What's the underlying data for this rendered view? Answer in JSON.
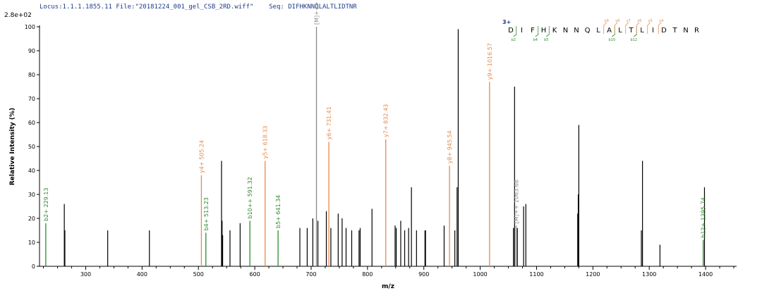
{
  "header": {
    "locus": "Locus:1.1.1.1855.11",
    "file": "File:\"20181224_001_gel_CSB_2RD.wiff\"",
    "seq": "Seq: DIFHKNNQLALTLIDTNR",
    "scale": "2.8e+02"
  },
  "sequence_panel": {
    "charge": "3+",
    "residues": [
      "D",
      "I",
      "F",
      "H",
      "K",
      "N",
      "N",
      "Q",
      "L",
      "A",
      "L",
      "T",
      "L",
      "I",
      "D",
      "T",
      "N",
      "R"
    ],
    "b_ions": [
      {
        "after_index": 0,
        "label": "b2"
      },
      {
        "after_index": 2,
        "label": "b4"
      },
      {
        "after_index": 3,
        "label": "b5"
      },
      {
        "after_index": 9,
        "label": "b10"
      },
      {
        "after_index": 11,
        "label": "b12"
      }
    ],
    "y_ions": [
      {
        "after_index": 8,
        "label": "y9"
      },
      {
        "after_index": 9,
        "label": "y8"
      },
      {
        "after_index": 10,
        "label": "y7"
      },
      {
        "after_index": 11,
        "label": "y6"
      },
      {
        "after_index": 12,
        "label": "y5"
      },
      {
        "after_index": 13,
        "label": "y4"
      }
    ]
  },
  "colors": {
    "b_ion": "#2e8b2e",
    "y_ion": "#e8894a",
    "precursor": "#888888",
    "unassigned": "#000000",
    "header": "#1f3c88"
  },
  "chart_data": {
    "type": "bar",
    "xlabel": "m/z",
    "ylabel": "Relative  Intensity (%)",
    "xlim": [
      218,
      1455
    ],
    "ylim": [
      0,
      100
    ],
    "x_ticks": [
      300,
      400,
      500,
      600,
      700,
      800,
      900,
      1000,
      1100,
      1200,
      1300,
      1400
    ],
    "y_ticks": [
      0,
      10,
      20,
      30,
      40,
      50,
      60,
      70,
      80,
      90,
      100
    ],
    "series": [
      {
        "name": "b",
        "peaks": [
          {
            "mz": 229.13,
            "intensity": 18,
            "label": "b2+ 229.13"
          },
          {
            "mz": 513.23,
            "intensity": 14,
            "label": "b4+ 513.23"
          },
          {
            "mz": 591.32,
            "intensity": 19,
            "label": "b10++ 591.32"
          },
          {
            "mz": 641.34,
            "intensity": 15,
            "label": "b5+ 641.34"
          },
          {
            "mz": 1395.74,
            "intensity": 11,
            "label": "b12+ 1395.74"
          }
        ]
      },
      {
        "name": "y",
        "peaks": [
          {
            "mz": 505.24,
            "intensity": 38,
            "label": "y4+ 505.24"
          },
          {
            "mz": 618.33,
            "intensity": 44,
            "label": "y5+ 618.33"
          },
          {
            "mz": 731.41,
            "intensity": 52,
            "label": "y6+ 731.41"
          },
          {
            "mz": 832.43,
            "intensity": 53,
            "label": "y7+ 832.43"
          },
          {
            "mz": 945.54,
            "intensity": 42,
            "label": "y8+ 945.54"
          },
          {
            "mz": 1016.57,
            "intensity": 77,
            "label": "y9+ 1016.57"
          }
        ]
      },
      {
        "name": "precursor",
        "peaks": [
          {
            "mz": 709.45,
            "intensity": 100,
            "label": "[M]+++ 709.45"
          },
          {
            "mz": 1063.68,
            "intensity": 17,
            "label": "[M]++ 1063.68"
          }
        ]
      },
      {
        "name": "unassigned",
        "peaks": [
          {
            "mz": 262,
            "intensity": 26
          },
          {
            "mz": 263,
            "intensity": 15
          },
          {
            "mz": 339,
            "intensity": 15
          },
          {
            "mz": 413,
            "intensity": 15
          },
          {
            "mz": 541,
            "intensity": 44
          },
          {
            "mz": 542,
            "intensity": 19
          },
          {
            "mz": 543,
            "intensity": 13
          },
          {
            "mz": 556,
            "intensity": 15
          },
          {
            "mz": 574,
            "intensity": 18
          },
          {
            "mz": 680,
            "intensity": 16
          },
          {
            "mz": 693,
            "intensity": 16
          },
          {
            "mz": 703,
            "intensity": 20
          },
          {
            "mz": 712,
            "intensity": 19
          },
          {
            "mz": 727,
            "intensity": 23
          },
          {
            "mz": 735,
            "intensity": 16
          },
          {
            "mz": 748,
            "intensity": 22
          },
          {
            "mz": 755,
            "intensity": 20
          },
          {
            "mz": 762,
            "intensity": 16
          },
          {
            "mz": 772,
            "intensity": 15
          },
          {
            "mz": 785,
            "intensity": 15
          },
          {
            "mz": 787,
            "intensity": 16
          },
          {
            "mz": 808,
            "intensity": 24
          },
          {
            "mz": 849,
            "intensity": 17
          },
          {
            "mz": 851,
            "intensity": 16
          },
          {
            "mz": 859,
            "intensity": 19
          },
          {
            "mz": 866,
            "intensity": 15
          },
          {
            "mz": 873,
            "intensity": 16
          },
          {
            "mz": 878,
            "intensity": 33
          },
          {
            "mz": 887,
            "intensity": 15
          },
          {
            "mz": 902,
            "intensity": 15
          },
          {
            "mz": 903,
            "intensity": 15
          },
          {
            "mz": 936,
            "intensity": 17
          },
          {
            "mz": 955,
            "intensity": 15
          },
          {
            "mz": 959,
            "intensity": 33
          },
          {
            "mz": 961,
            "intensity": 99
          },
          {
            "mz": 1059,
            "intensity": 16
          },
          {
            "mz": 1061,
            "intensity": 75
          },
          {
            "mz": 1066,
            "intensity": 16
          },
          {
            "mz": 1077,
            "intensity": 25
          },
          {
            "mz": 1081,
            "intensity": 26
          },
          {
            "mz": 1173,
            "intensity": 22
          },
          {
            "mz": 1174,
            "intensity": 30
          },
          {
            "mz": 1175,
            "intensity": 59
          },
          {
            "mz": 1286,
            "intensity": 15
          },
          {
            "mz": 1288,
            "intensity": 44
          },
          {
            "mz": 1319,
            "intensity": 9
          },
          {
            "mz": 1398,
            "intensity": 33
          }
        ]
      }
    ]
  }
}
